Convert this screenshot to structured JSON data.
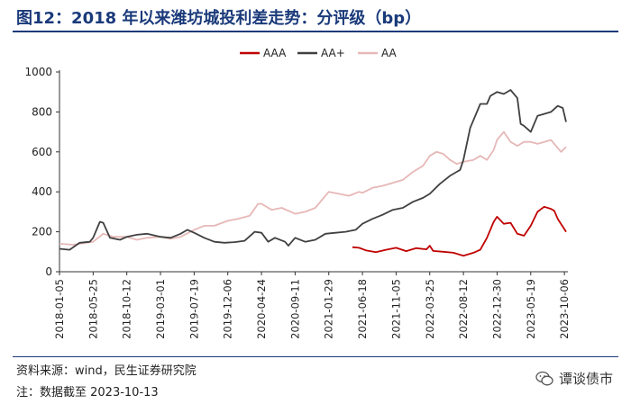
{
  "header": {
    "title": "图12：2018 年以来潍坊城投利差走势：分评级（bp）"
  },
  "footer": {
    "source": "资料来源：wind，民生证券研究院",
    "note": "注：数据截至 2023-10-13",
    "watermark": "谭谈债市",
    "watermark_icon": "wechat-icon"
  },
  "chart_data": {
    "type": "line",
    "ylim": [
      0,
      1000
    ],
    "yticks": [
      0,
      200,
      400,
      600,
      800,
      1000
    ],
    "xlim": [
      "2018-01-05",
      "2023-10-13"
    ],
    "xtick_labels": [
      "2018-01-05",
      "2018-05-25",
      "2018-10-12",
      "2019-03-01",
      "2019-07-19",
      "2019-12-06",
      "2020-04-24",
      "2020-09-11",
      "2021-01-29",
      "2021-06-18",
      "2021-11-05",
      "2022-03-25",
      "2022-08-12",
      "2022-12-30",
      "2023-05-19",
      "2023-10-06"
    ],
    "legend_position": "top",
    "grid": false,
    "series": [
      {
        "name": "AAA",
        "color": "#c00000",
        "points": [
          [
            "2021-05-07",
            123
          ],
          [
            "2021-06-04",
            120
          ],
          [
            "2021-07-02",
            107
          ],
          [
            "2021-08-13",
            98
          ],
          [
            "2021-09-24",
            110
          ],
          [
            "2021-11-05",
            120
          ],
          [
            "2021-12-17",
            103
          ],
          [
            "2022-01-28",
            118
          ],
          [
            "2022-03-11",
            112
          ],
          [
            "2022-03-25",
            130
          ],
          [
            "2022-04-08",
            104
          ],
          [
            "2022-05-20",
            100
          ],
          [
            "2022-07-01",
            95
          ],
          [
            "2022-08-12",
            80
          ],
          [
            "2022-09-23",
            95
          ],
          [
            "2022-10-21",
            110
          ],
          [
            "2022-11-18",
            170
          ],
          [
            "2022-12-16",
            250
          ],
          [
            "2022-12-30",
            275
          ],
          [
            "2023-01-27",
            240
          ],
          [
            "2023-02-24",
            245
          ],
          [
            "2023-03-24",
            190
          ],
          [
            "2023-04-21",
            180
          ],
          [
            "2023-05-19",
            230
          ],
          [
            "2023-06-16",
            300
          ],
          [
            "2023-07-14",
            325
          ],
          [
            "2023-08-11",
            315
          ],
          [
            "2023-08-25",
            305
          ],
          [
            "2023-09-08",
            265
          ],
          [
            "2023-10-13",
            200
          ]
        ]
      },
      {
        "name": "AA+",
        "color": "#404040",
        "points": [
          [
            "2018-01-05",
            115
          ],
          [
            "2018-02-16",
            110
          ],
          [
            "2018-03-30",
            145
          ],
          [
            "2018-05-11",
            150
          ],
          [
            "2018-05-25",
            170
          ],
          [
            "2018-06-22",
            250
          ],
          [
            "2018-07-06",
            245
          ],
          [
            "2018-08-03",
            170
          ],
          [
            "2018-09-14",
            160
          ],
          [
            "2018-10-12",
            175
          ],
          [
            "2018-11-23",
            185
          ],
          [
            "2019-01-04",
            190
          ],
          [
            "2019-03-01",
            175
          ],
          [
            "2019-04-12",
            170
          ],
          [
            "2019-05-24",
            190
          ],
          [
            "2019-06-21",
            210
          ],
          [
            "2019-07-19",
            195
          ],
          [
            "2019-08-30",
            170
          ],
          [
            "2019-10-11",
            150
          ],
          [
            "2019-11-22",
            145
          ],
          [
            "2020-01-03",
            148
          ],
          [
            "2020-02-14",
            155
          ],
          [
            "2020-03-27",
            200
          ],
          [
            "2020-04-24",
            195
          ],
          [
            "2020-05-22",
            150
          ],
          [
            "2020-06-19",
            170
          ],
          [
            "2020-07-31",
            150
          ],
          [
            "2020-08-14",
            130
          ],
          [
            "2020-09-11",
            170
          ],
          [
            "2020-10-23",
            150
          ],
          [
            "2020-12-04",
            160
          ],
          [
            "2021-01-15",
            190
          ],
          [
            "2021-02-26",
            195
          ],
          [
            "2021-04-09",
            200
          ],
          [
            "2021-05-21",
            210
          ],
          [
            "2021-06-18",
            240
          ],
          [
            "2021-07-30",
            265
          ],
          [
            "2021-09-10",
            285
          ],
          [
            "2021-10-22",
            310
          ],
          [
            "2021-12-03",
            320
          ],
          [
            "2022-01-14",
            350
          ],
          [
            "2022-02-25",
            370
          ],
          [
            "2022-03-25",
            390
          ],
          [
            "2022-05-06",
            440
          ],
          [
            "2022-06-17",
            480
          ],
          [
            "2022-07-29",
            510
          ],
          [
            "2022-08-12",
            560
          ],
          [
            "2022-09-09",
            720
          ],
          [
            "2022-10-21",
            840
          ],
          [
            "2022-11-18",
            840
          ],
          [
            "2022-12-02",
            880
          ],
          [
            "2022-12-30",
            900
          ],
          [
            "2023-01-27",
            890
          ],
          [
            "2023-02-24",
            910
          ],
          [
            "2023-03-24",
            870
          ],
          [
            "2023-04-07",
            740
          ],
          [
            "2023-04-21",
            730
          ],
          [
            "2023-05-19",
            700
          ],
          [
            "2023-06-16",
            780
          ],
          [
            "2023-07-14",
            790
          ],
          [
            "2023-08-11",
            800
          ],
          [
            "2023-09-08",
            830
          ],
          [
            "2023-09-29",
            820
          ],
          [
            "2023-10-13",
            750
          ]
        ]
      },
      {
        "name": "AA",
        "color": "#e6b8b7",
        "points": [
          [
            "2018-01-05",
            140
          ],
          [
            "2018-03-02",
            135
          ],
          [
            "2018-05-25",
            150
          ],
          [
            "2018-07-06",
            190
          ],
          [
            "2018-08-17",
            175
          ],
          [
            "2018-10-12",
            175
          ],
          [
            "2018-11-23",
            160
          ],
          [
            "2019-01-04",
            170
          ],
          [
            "2019-03-01",
            175
          ],
          [
            "2019-04-12",
            165
          ],
          [
            "2019-05-24",
            175
          ],
          [
            "2019-07-19",
            210
          ],
          [
            "2019-08-30",
            230
          ],
          [
            "2019-10-11",
            230
          ],
          [
            "2019-12-06",
            255
          ],
          [
            "2020-01-17",
            265
          ],
          [
            "2020-03-06",
            280
          ],
          [
            "2020-04-10",
            340
          ],
          [
            "2020-04-24",
            340
          ],
          [
            "2020-06-05",
            310
          ],
          [
            "2020-07-17",
            320
          ],
          [
            "2020-09-11",
            290
          ],
          [
            "2020-10-23",
            300
          ],
          [
            "2020-12-04",
            320
          ],
          [
            "2021-01-15",
            380
          ],
          [
            "2021-01-29",
            400
          ],
          [
            "2021-03-12",
            390
          ],
          [
            "2021-04-23",
            380
          ],
          [
            "2021-06-04",
            400
          ],
          [
            "2021-06-18",
            395
          ],
          [
            "2021-07-30",
            420
          ],
          [
            "2021-09-10",
            430
          ],
          [
            "2021-10-22",
            445
          ],
          [
            "2021-12-03",
            460
          ],
          [
            "2022-01-14",
            500
          ],
          [
            "2022-02-25",
            530
          ],
          [
            "2022-03-25",
            580
          ],
          [
            "2022-04-22",
            600
          ],
          [
            "2022-05-20",
            590
          ],
          [
            "2022-06-17",
            560
          ],
          [
            "2022-07-15",
            540
          ],
          [
            "2022-08-12",
            550
          ],
          [
            "2022-09-23",
            560
          ],
          [
            "2022-10-21",
            580
          ],
          [
            "2022-11-18",
            560
          ],
          [
            "2022-12-16",
            610
          ],
          [
            "2022-12-30",
            660
          ],
          [
            "2023-01-27",
            700
          ],
          [
            "2023-02-24",
            650
          ],
          [
            "2023-03-24",
            630
          ],
          [
            "2023-04-21",
            650
          ],
          [
            "2023-05-19",
            650
          ],
          [
            "2023-06-16",
            640
          ],
          [
            "2023-07-14",
            650
          ],
          [
            "2023-08-11",
            660
          ],
          [
            "2023-09-08",
            620
          ],
          [
            "2023-09-22",
            600
          ],
          [
            "2023-10-13",
            625
          ]
        ]
      }
    ]
  }
}
